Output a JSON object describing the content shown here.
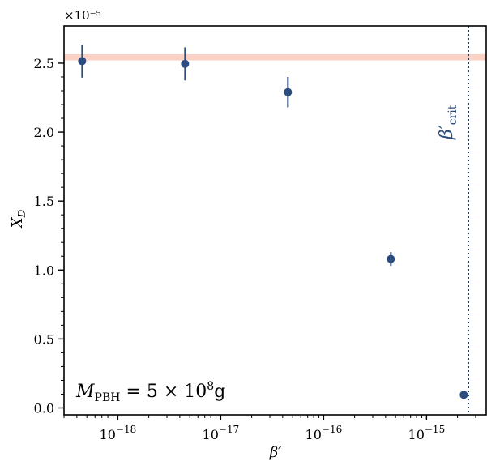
{
  "chart_data": {
    "type": "scatter",
    "title": "",
    "xlabel": "β′",
    "ylabel": "X_D",
    "xscale": "log",
    "xlim": [
      3e-19,
      3.8e-15
    ],
    "ylim": [
      -5e-07,
      2.77e-05
    ],
    "offset_text": "×10⁻⁵",
    "xticks": [
      {
        "value": 1e-18,
        "base": "10",
        "exp": "−18"
      },
      {
        "value": 1e-17,
        "base": "10",
        "exp": "−17"
      },
      {
        "value": 1e-16,
        "base": "10",
        "exp": "−16"
      },
      {
        "value": 1e-15,
        "base": "10",
        "exp": "−15"
      }
    ],
    "yticks": [
      {
        "value": 0.0,
        "label": "0.0"
      },
      {
        "value": 5e-06,
        "label": "0.5"
      },
      {
        "value": 1e-05,
        "label": "1.0"
      },
      {
        "value": 1.5e-05,
        "label": "1.5"
      },
      {
        "value": 2e-05,
        "label": "2.0"
      },
      {
        "value": 2.5e-05,
        "label": "2.5"
      }
    ],
    "grid": false,
    "series": [
      {
        "color": "#2b4c7e",
        "points": [
          {
            "x": 4.5e-19,
            "y": 2.515e-05,
            "err": 1.2e-06
          },
          {
            "x": 4.5e-18,
            "y": 2.495e-05,
            "err": 1.2e-06
          },
          {
            "x": 4.5e-17,
            "y": 2.29e-05,
            "err": 1.1e-06
          },
          {
            "x": 4.5e-16,
            "y": 1.08e-05,
            "err": 5e-07
          },
          {
            "x": 2.3e-15,
            "y": 9.5e-07,
            "err": 0.0
          }
        ]
      }
    ],
    "band": {
      "ymin": 2.52e-05,
      "ymax": 2.565e-05,
      "color": "#f5a58c"
    },
    "vline": {
      "x": 2.55e-15,
      "color": "#1f3a5f",
      "style": "dotted"
    },
    "annotations": {
      "vline_label_main": "β′",
      "vline_label_sub": "crit",
      "mass_label_main": "M",
      "mass_label_sub": "PBH",
      "mass_label_rest": " = 5 × 10",
      "mass_label_exp": "8",
      "mass_label_unit": "g"
    }
  }
}
